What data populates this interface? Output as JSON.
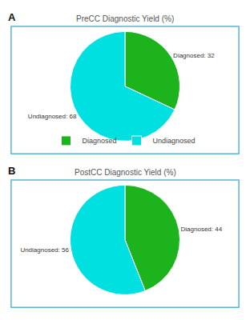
{
  "chart_data": [
    {
      "type": "pie",
      "title": "PreCC Diagnostic Yield (%)",
      "annotations": [
        "A"
      ],
      "categories": [
        "Diagnosed",
        "Undiagnosed"
      ],
      "values": [
        32,
        68
      ],
      "value_labels": [
        "Diagnosed: 32",
        "Undiagnosed: 68"
      ],
      "data_labels": true,
      "colors": [
        "#1db31d",
        "#00e0e0"
      ],
      "legend": "bottom"
    },
    {
      "type": "pie",
      "title": "PostCC Diagnostic Yield (%)",
      "annotations": [
        "B"
      ],
      "categories": [
        "Diagnosed",
        "Undiagnosed"
      ],
      "values": [
        44,
        56
      ],
      "value_labels": [
        "Diagnosed: 44",
        "Undiagnosed: 56"
      ],
      "data_labels": true,
      "colors": [
        "#1db31d",
        "#00e0e0"
      ],
      "legend": "bottom"
    }
  ]
}
